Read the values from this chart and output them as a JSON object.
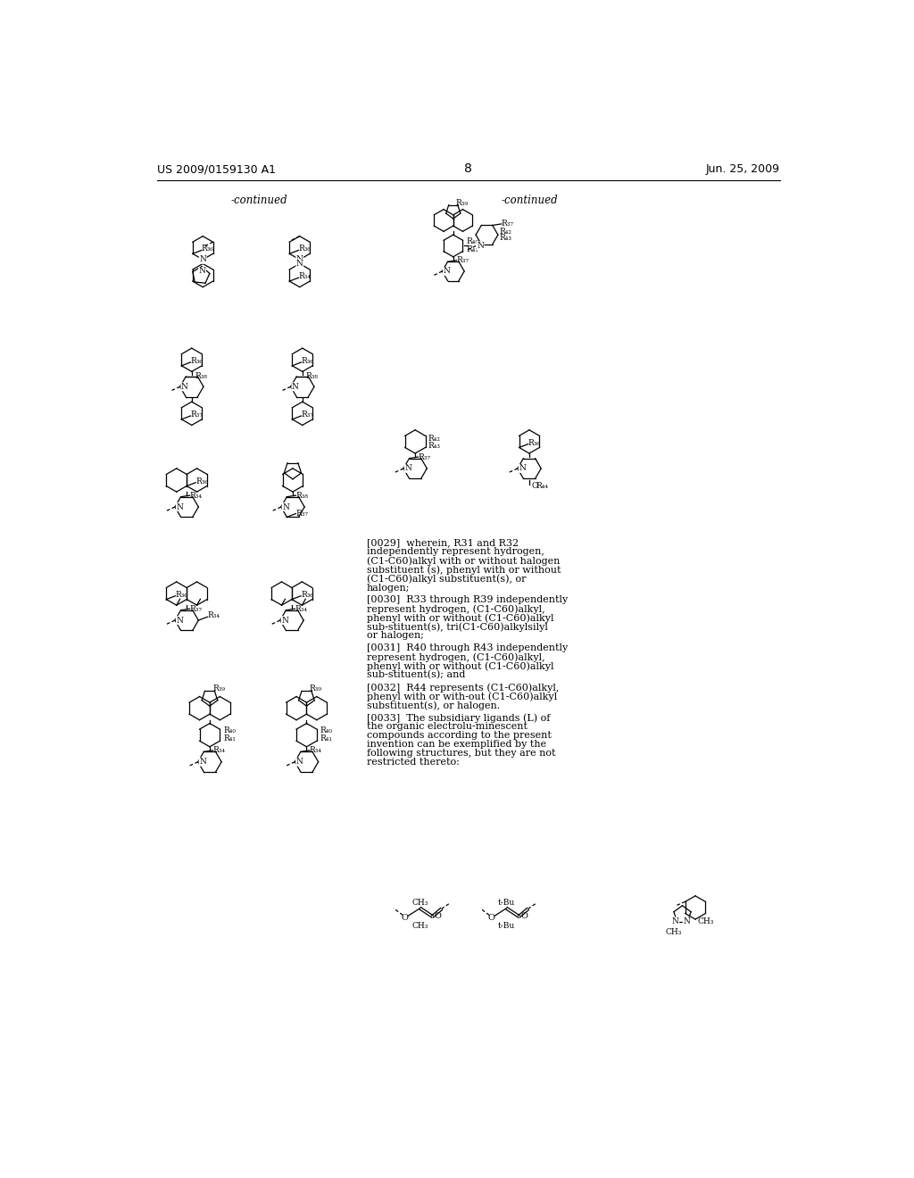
{
  "page_number": "8",
  "left_header": "US 2009/0159130 A1",
  "right_header": "Jun. 25, 2009",
  "background_color": "#ffffff",
  "text_color": "#000000",
  "continued_left": "-continued",
  "continued_right": "-continued",
  "para_0029": "[0029]  wherein, R31 and R32 independently represent hydrogen, (C1-C60)alkyl with or without halogen substituent (s), phenyl with or without (C1-C60)alkyl substituent(s), or halogen;",
  "para_0030": "[0030]  R33 through R39 independently represent hydrogen, (C1-C60)alkyl, phenyl with or without (C1-C60)alkyl sub-stituent(s), tri(C1-C60)alkylsilyl or halogen;",
  "para_0031": "[0031]  R40 through R43 independently represent hydrogen, (C1-C60)alkyl, phenyl with or without (C1-C60)alkyl sub-stituent(s); and",
  "para_0032": "[0032]  R44 represents (C1-C60)alkyl, phenyl with or with-out (C1-C60)alkyl substituent(s), or halogen.",
  "para_0033": "[0033]  The subsidiary ligands (L) of the organic electrolu-minescent compounds according to the present invention can be exemplified by the following structures, but they are not restricted thereto:"
}
